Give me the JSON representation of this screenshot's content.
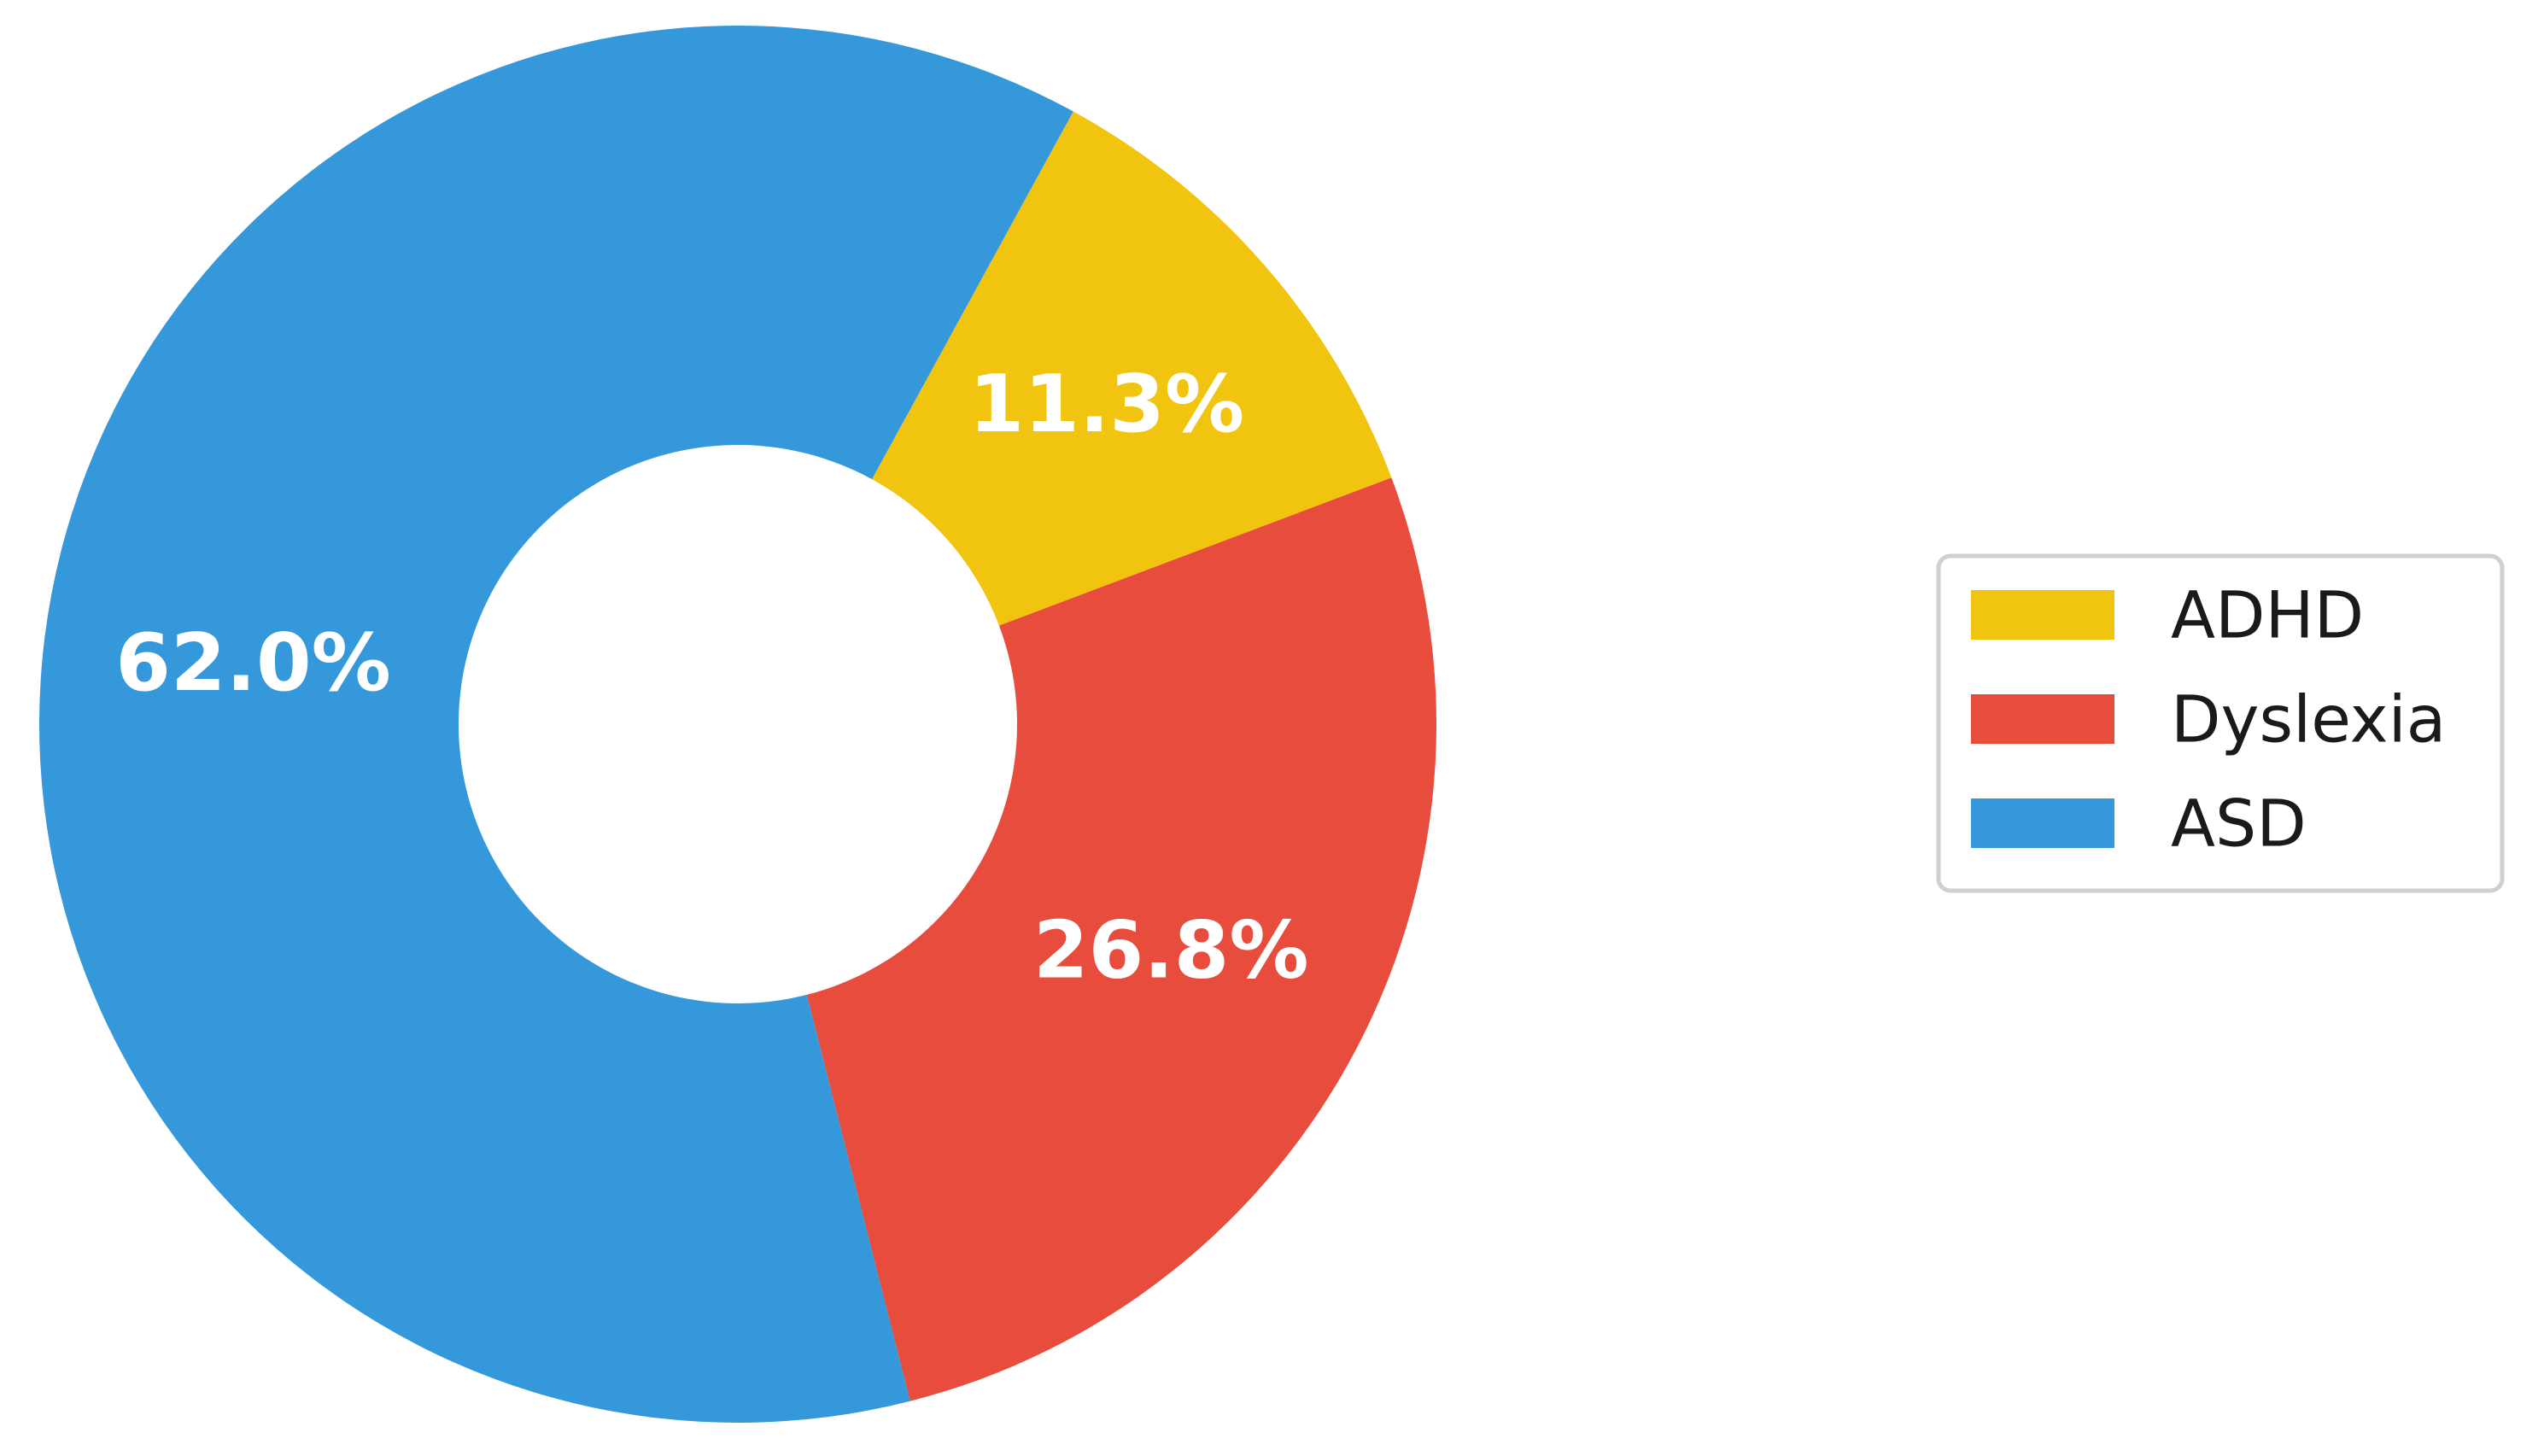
{
  "chart_data": {
    "type": "pie",
    "donut": true,
    "categories": [
      "ADHD",
      "Dyslexia",
      "ASD"
    ],
    "values": [
      11.3,
      26.8,
      62.0
    ],
    "value_labels": [
      "11.3%",
      "26.8%",
      "62.0%"
    ],
    "colors": [
      "#f1c40f",
      "#e74c3c",
      "#3498db"
    ],
    "legend": {
      "placement": "right",
      "entries": [
        "ADHD",
        "Dyslexia",
        "ASD"
      ]
    },
    "start_angle_deg": -61.3,
    "direction": "clockwise"
  }
}
